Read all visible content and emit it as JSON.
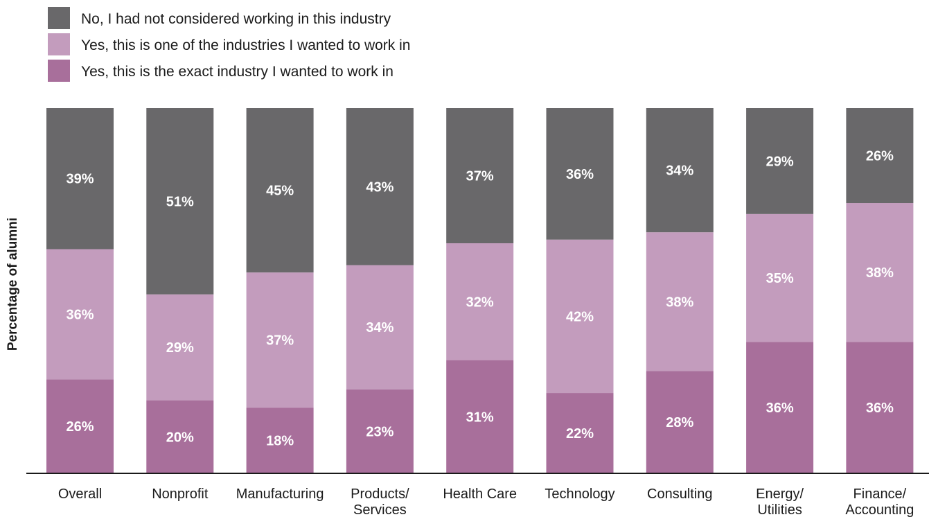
{
  "chart_data": {
    "type": "bar",
    "stacked": true,
    "normalized": true,
    "ylabel": "Percentage of alumni",
    "xlabel": "",
    "title": "",
    "ylim": [
      0,
      100
    ],
    "grid": false,
    "legend_position": "top-left",
    "value_format": "percent",
    "categories": [
      [
        "Overall"
      ],
      [
        "Nonprofit"
      ],
      [
        "Manufacturing"
      ],
      [
        "Products/",
        "Services"
      ],
      [
        "Health Care"
      ],
      [
        "Technology"
      ],
      [
        "Consulting"
      ],
      [
        "Energy/",
        "Utilities"
      ],
      [
        "Finance/",
        "Accounting"
      ]
    ],
    "series": [
      {
        "name": "Yes, this is the exact industry I wanted to work in",
        "color": "#a86f9b",
        "values": [
          26,
          20,
          18,
          23,
          31,
          22,
          28,
          36,
          36
        ]
      },
      {
        "name": "Yes, this is one of the industries I wanted to work in",
        "color": "#c39cbd",
        "values": [
          36,
          29,
          37,
          34,
          32,
          42,
          38,
          35,
          38
        ]
      },
      {
        "name": "No, I had not considered working in this industry",
        "color": "#69686a",
        "values": [
          39,
          51,
          45,
          43,
          37,
          36,
          34,
          29,
          26
        ]
      }
    ],
    "legend_order": [
      2,
      1,
      0
    ]
  }
}
